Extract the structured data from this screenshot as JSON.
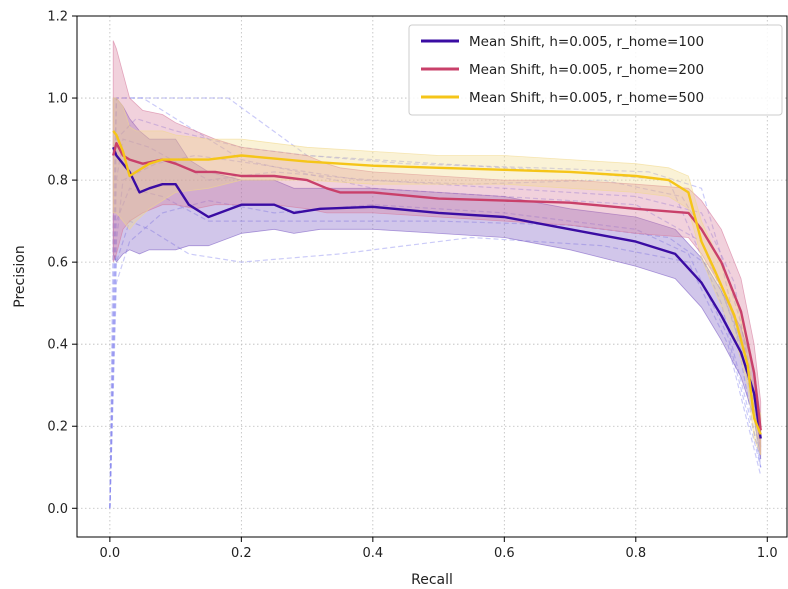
{
  "chart_data": {
    "type": "line",
    "title": "",
    "xlabel": "Recall",
    "ylabel": "Precision",
    "xlim": [
      -0.05,
      1.03
    ],
    "ylim": [
      -0.07,
      1.2
    ],
    "xticks": [
      0.0,
      0.2,
      0.4,
      0.6,
      0.8,
      1.0
    ],
    "xtick_labels": [
      "0.0",
      "0.2",
      "0.4",
      "0.6",
      "0.8",
      "1.0"
    ],
    "yticks": [
      0.0,
      0.2,
      0.4,
      0.6,
      0.8,
      1.0,
      1.2
    ],
    "ytick_labels": [
      "0.0",
      "0.2",
      "0.4",
      "0.6",
      "0.8",
      "1.0",
      "1.2"
    ],
    "grid": true,
    "legend_position": "top-right",
    "series": [
      {
        "name": "Mean Shift, h=0.005, r_home=100",
        "color": "#3a0ca3",
        "band_color": "#7b5cc4",
        "x": [
          0.005,
          0.01,
          0.02,
          0.03,
          0.045,
          0.06,
          0.08,
          0.1,
          0.12,
          0.15,
          0.2,
          0.25,
          0.28,
          0.32,
          0.4,
          0.5,
          0.6,
          0.7,
          0.8,
          0.86,
          0.9,
          0.93,
          0.96,
          0.98,
          0.99
        ],
        "y": [
          0.88,
          0.86,
          0.84,
          0.82,
          0.77,
          0.78,
          0.79,
          0.79,
          0.74,
          0.71,
          0.74,
          0.74,
          0.72,
          0.73,
          0.735,
          0.72,
          0.71,
          0.68,
          0.65,
          0.62,
          0.55,
          0.47,
          0.38,
          0.28,
          0.17
        ],
        "lower": [
          0.62,
          0.6,
          0.62,
          0.63,
          0.62,
          0.63,
          0.63,
          0.63,
          0.64,
          0.64,
          0.67,
          0.68,
          0.67,
          0.68,
          0.68,
          0.67,
          0.66,
          0.63,
          0.59,
          0.56,
          0.49,
          0.41,
          0.32,
          0.22,
          0.12
        ],
        "upper": [
          1.0,
          1.0,
          0.98,
          0.95,
          0.92,
          0.9,
          0.9,
          0.9,
          0.85,
          0.82,
          0.8,
          0.8,
          0.78,
          0.78,
          0.78,
          0.77,
          0.76,
          0.73,
          0.71,
          0.68,
          0.61,
          0.53,
          0.44,
          0.34,
          0.22
        ]
      },
      {
        "name": "Mean Shift, h=0.005, r_home=200",
        "color": "#c9406a",
        "band_color": "#d67a9c",
        "x": [
          0.005,
          0.01,
          0.02,
          0.03,
          0.05,
          0.08,
          0.1,
          0.13,
          0.16,
          0.2,
          0.25,
          0.3,
          0.33,
          0.35,
          0.4,
          0.5,
          0.6,
          0.7,
          0.8,
          0.88,
          0.9,
          0.93,
          0.96,
          0.98,
          0.99
        ],
        "y": [
          0.86,
          0.89,
          0.86,
          0.85,
          0.84,
          0.85,
          0.84,
          0.82,
          0.82,
          0.81,
          0.81,
          0.8,
          0.78,
          0.77,
          0.77,
          0.755,
          0.75,
          0.745,
          0.73,
          0.72,
          0.68,
          0.6,
          0.48,
          0.33,
          0.19
        ],
        "lower": [
          0.6,
          0.62,
          0.68,
          0.7,
          0.72,
          0.74,
          0.74,
          0.73,
          0.74,
          0.74,
          0.74,
          0.73,
          0.72,
          0.72,
          0.72,
          0.71,
          0.7,
          0.69,
          0.67,
          0.66,
          0.62,
          0.54,
          0.42,
          0.27,
          0.13
        ],
        "upper": [
          1.14,
          1.12,
          1.06,
          1.0,
          0.97,
          0.96,
          0.94,
          0.92,
          0.9,
          0.88,
          0.87,
          0.86,
          0.84,
          0.83,
          0.82,
          0.81,
          0.8,
          0.8,
          0.79,
          0.78,
          0.75,
          0.68,
          0.56,
          0.4,
          0.26
        ]
      },
      {
        "name": "Mean Shift, h=0.005, r_home=500",
        "color": "#f5c518",
        "band_color": "#f2d98a",
        "x": [
          0.005,
          0.01,
          0.02,
          0.03,
          0.04,
          0.06,
          0.08,
          0.1,
          0.15,
          0.2,
          0.3,
          0.4,
          0.5,
          0.6,
          0.7,
          0.8,
          0.85,
          0.88,
          0.9,
          0.92,
          0.95,
          0.97,
          0.98,
          0.99
        ],
        "y": [
          0.92,
          0.91,
          0.87,
          0.81,
          0.82,
          0.84,
          0.85,
          0.85,
          0.85,
          0.86,
          0.845,
          0.835,
          0.83,
          0.825,
          0.82,
          0.81,
          0.8,
          0.77,
          0.65,
          0.58,
          0.47,
          0.35,
          0.22,
          0.18
        ],
        "lower": [
          0.72,
          0.72,
          0.7,
          0.68,
          0.7,
          0.73,
          0.75,
          0.77,
          0.78,
          0.8,
          0.8,
          0.79,
          0.79,
          0.79,
          0.78,
          0.77,
          0.76,
          0.73,
          0.61,
          0.53,
          0.42,
          0.3,
          0.17,
          0.13
        ],
        "upper": [
          1.0,
          1.0,
          0.98,
          0.93,
          0.92,
          0.92,
          0.92,
          0.91,
          0.9,
          0.9,
          0.88,
          0.87,
          0.86,
          0.86,
          0.85,
          0.84,
          0.83,
          0.81,
          0.7,
          0.63,
          0.52,
          0.4,
          0.27,
          0.23
        ]
      }
    ],
    "individual_runs": {
      "color": "#8b8bf0",
      "runs": [
        {
          "x": [
            0.0,
            0.005,
            0.01,
            0.05,
            0.1,
            0.2,
            0.4,
            0.6,
            0.8,
            0.9,
            0.95,
            0.99
          ],
          "y": [
            0.0,
            0.7,
            1.0,
            1.0,
            0.95,
            0.85,
            0.78,
            0.76,
            0.74,
            0.65,
            0.45,
            0.1
          ]
        },
        {
          "x": [
            0.0,
            0.005,
            0.01,
            0.05,
            0.1,
            0.18,
            0.3,
            0.5,
            0.7,
            0.85,
            0.93,
            0.99
          ],
          "y": [
            0.0,
            0.5,
            1.0,
            1.0,
            1.0,
            1.0,
            0.86,
            0.84,
            0.82,
            0.8,
            0.5,
            0.12
          ]
        },
        {
          "x": [
            0.0,
            0.01,
            0.03,
            0.06,
            0.12,
            0.2,
            0.35,
            0.55,
            0.75,
            0.88,
            0.94,
            0.99
          ],
          "y": [
            0.0,
            0.6,
            0.7,
            0.68,
            0.62,
            0.6,
            0.62,
            0.66,
            0.64,
            0.6,
            0.4,
            0.08
          ]
        },
        {
          "x": [
            0.0,
            0.01,
            0.02,
            0.06,
            0.15,
            0.25,
            0.4,
            0.6,
            0.8,
            0.9,
            0.95,
            0.99
          ],
          "y": [
            0.0,
            0.8,
            0.9,
            0.88,
            0.8,
            0.82,
            0.8,
            0.78,
            0.76,
            0.72,
            0.55,
            0.15
          ]
        },
        {
          "x": [
            0.0,
            0.01,
            0.03,
            0.08,
            0.15,
            0.25,
            0.4,
            0.6,
            0.8,
            0.88,
            0.94,
            0.99
          ],
          "y": [
            0.0,
            0.55,
            0.65,
            0.72,
            0.75,
            0.72,
            0.74,
            0.72,
            0.68,
            0.62,
            0.42,
            0.1
          ]
        },
        {
          "x": [
            0.0,
            0.01,
            0.04,
            0.1,
            0.2,
            0.3,
            0.45,
            0.65,
            0.82,
            0.9,
            0.96,
            0.99
          ],
          "y": [
            0.0,
            0.9,
            0.95,
            0.92,
            0.88,
            0.86,
            0.84,
            0.83,
            0.82,
            0.78,
            0.45,
            0.2
          ]
        },
        {
          "x": [
            0.0,
            0.01,
            0.03,
            0.08,
            0.15,
            0.3,
            0.5,
            0.7,
            0.85,
            0.92,
            0.97,
            0.99
          ],
          "y": [
            0.0,
            0.7,
            0.78,
            0.76,
            0.7,
            0.7,
            0.7,
            0.69,
            0.66,
            0.58,
            0.35,
            0.1
          ]
        },
        {
          "x": [
            0.0,
            0.01,
            0.02,
            0.07,
            0.13,
            0.22,
            0.38,
            0.55,
            0.75,
            0.87,
            0.93,
            0.99
          ],
          "y": [
            0.0,
            0.65,
            0.8,
            0.84,
            0.86,
            0.84,
            0.8,
            0.79,
            0.8,
            0.76,
            0.6,
            0.17
          ]
        }
      ]
    }
  }
}
